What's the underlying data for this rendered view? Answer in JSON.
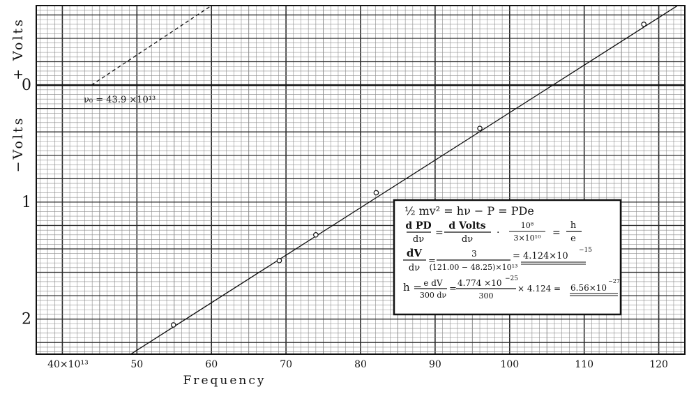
{
  "chart_data": {
    "type": "scatter",
    "title": "",
    "xlabel": "Frequency",
    "ylabel_pos": "+ Volts",
    "ylabel_neg": "−Volts",
    "x_unit": "×10¹³",
    "xlim": [
      36.5,
      123.5
    ],
    "ylim": [
      2.3,
      -0.68
    ],
    "x_ticks": [
      40,
      50,
      60,
      70,
      80,
      90,
      100,
      110,
      120
    ],
    "x_tick_labels": [
      "40×10¹³",
      "50",
      "60",
      "70",
      "80",
      "90",
      "100",
      "110",
      "120"
    ],
    "y_ticks": [
      0,
      1,
      2
    ],
    "y_tick_labels": [
      "0",
      "1",
      "2"
    ],
    "grid": true,
    "series": [
      {
        "x": [
          54.9,
          69.1,
          74.0,
          82.1,
          96.0,
          118.0
        ],
        "y": [
          2.05,
          1.5,
          1.28,
          0.92,
          0.37,
          -0.52
        ]
      }
    ],
    "fit_line": {
      "x": [
        47.2,
        124.5
      ],
      "y": [
        2.38,
        -0.76
      ]
    },
    "extrapolation": {
      "x": [
        43.9,
        60.0
      ],
      "y": [
        0,
        -0.68
      ]
    },
    "annotation": "ν₀ = 43.9 ×10¹³",
    "equations": [
      "½ mv² = hν − P = PDe",
      "dPD/dν = dVolts/dν · 10⁸/(3×10¹⁰) = h/e",
      "dV/dν = 3/((121.00 − 48.25)×10¹³) = 4.124×10⁻¹⁵",
      "h = e/300 · dV/dν = 4.774×10⁻²⁵/300 × 4.124 = 6.56×10⁻²⁷"
    ],
    "eq_text": {
      "line1": "½ mv² = hν − P = PDe",
      "l2_n1": "d PD",
      "l2_d1": "dν",
      "l2_eq1": "=",
      "l2_n2": "d Volts",
      "l2_d2": "dν",
      "l2_dot": "·",
      "l2_n3": "10⁸",
      "l2_d3": "3×10¹⁰",
      "l2_eq2": "=",
      "l2_n4": "h",
      "l2_d4": "e",
      "l3_n1": "dV",
      "l3_d1": "dν",
      "l3_eq1": "=",
      "l3_n2": "3",
      "l3_d2": "(121.00 − 48.25)×10¹³",
      "l3_res": "= 4.124×10",
      "l3_exp": "−15",
      "l4_h": "h =",
      "l4_n1": "e dV",
      "l4_d1": "300 dν",
      "l4_eq": "=",
      "l4_n2": "4.774 ×10",
      "l4_n2exp": "−25",
      "l4_d2": "300",
      "l4_res": "× 4.124 =",
      "l4_val": "6.56×10",
      "l4_valexp": "−27"
    },
    "colors": {
      "grid_major": "#2b2b2b",
      "grid_minor": "#8c8c8c",
      "ink": "#111111"
    }
  }
}
